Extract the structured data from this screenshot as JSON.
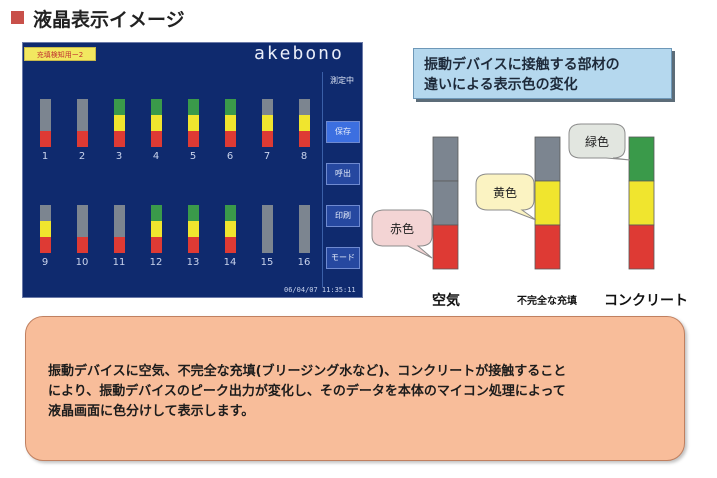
{
  "title": "液晶表示イメージ",
  "lcd": {
    "badge": "充填検知用ー2",
    "brand": "akebono",
    "status": "測定中",
    "buttons": [
      "保存",
      "呼出",
      "印刷",
      "モード"
    ],
    "clock": "06/04/07 11:35:11",
    "channels": [
      {
        "label": "1",
        "level": 1
      },
      {
        "label": "2",
        "level": 1
      },
      {
        "label": "3",
        "level": 3
      },
      {
        "label": "4",
        "level": 3
      },
      {
        "label": "5",
        "level": 3
      },
      {
        "label": "6",
        "level": 3
      },
      {
        "label": "7",
        "level": 2
      },
      {
        "label": "8",
        "level": 2
      },
      {
        "label": "9",
        "level": 2
      },
      {
        "label": "10",
        "level": 1
      },
      {
        "label": "11",
        "level": 1
      },
      {
        "label": "12",
        "level": 3
      },
      {
        "label": "13",
        "level": 3
      },
      {
        "label": "14",
        "level": 3
      },
      {
        "label": "15",
        "level": 0
      },
      {
        "label": "16",
        "level": 0
      }
    ]
  },
  "callout": {
    "line1": "振動デバイスに接触する部材の",
    "line2": "違いによる表示色の変化"
  },
  "columns": [
    {
      "label": "空気",
      "level": 1,
      "bubble": "赤色"
    },
    {
      "label": "不完全な充填",
      "level": 2,
      "bubble": "黄色"
    },
    {
      "label": "コンクリート",
      "level": 3,
      "bubble": "緑色"
    }
  ],
  "colors": {
    "empty": "#7c8590",
    "red": "#de3a34",
    "yellow": "#f0e52e",
    "green": "#3a9a4a"
  },
  "note": {
    "line1": "振動デバイスに空気、不完全な充填(ブリージング水など)、コンクリートが接触すること",
    "line2": "により、振動デバイスのピーク出力が変化し、そのデータを本体のマイコン処理によって",
    "line3": "液晶画面に色分けして表示します。"
  }
}
